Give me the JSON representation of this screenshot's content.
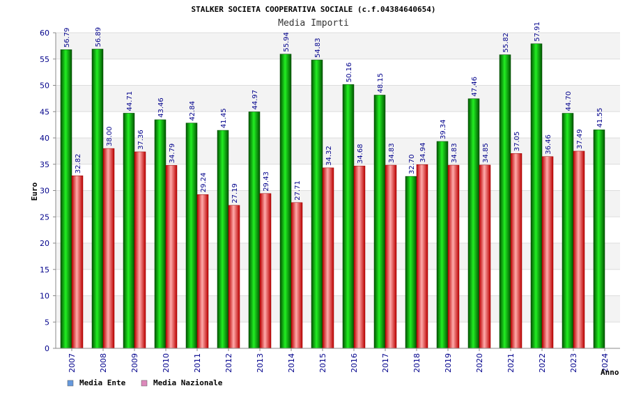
{
  "chart_data": {
    "type": "bar",
    "title": "STALKER SOCIETA COOPERATIVA SOCIALE (c.f.04384640654)",
    "subtitle": "Media Importi",
    "xlabel": "Anno",
    "ylabel": "Euro",
    "ylim": [
      0,
      60
    ],
    "yticks": [
      0,
      5,
      10,
      15,
      20,
      25,
      30,
      35,
      40,
      45,
      50,
      55,
      60
    ],
    "categories": [
      "2007",
      "2008",
      "2009",
      "2010",
      "2011",
      "2012",
      "2013",
      "2014",
      "2015",
      "2016",
      "2017",
      "2018",
      "2019",
      "2020",
      "2021",
      "2022",
      "2023",
      "2024"
    ],
    "series": [
      {
        "name": "Media Ente",
        "color": "#00aa00",
        "values": [
          56.79,
          56.89,
          44.71,
          43.46,
          42.84,
          41.45,
          44.97,
          55.94,
          54.83,
          50.16,
          48.15,
          32.7,
          39.34,
          47.46,
          55.82,
          57.91,
          44.7,
          41.55
        ],
        "labels": [
          "56.79",
          "56.89",
          "44.71",
          "43.46",
          "42.84",
          "41.45",
          "44.97",
          "55.94",
          "54.83",
          "50.16",
          "48.15",
          "32.70",
          "39.34",
          "47.46",
          "55.82",
          "57.91",
          "44.70",
          "41.55"
        ]
      },
      {
        "name": "Media Nazionale",
        "color": "#dd2222",
        "values": [
          32.82,
          38.0,
          37.36,
          34.79,
          29.24,
          27.19,
          29.43,
          27.71,
          34.32,
          34.68,
          34.83,
          34.94,
          34.83,
          34.85,
          37.05,
          36.46,
          37.49,
          null
        ],
        "labels": [
          "32.82",
          "38.00",
          "37.36",
          "34.79",
          "29.24",
          "27.19",
          "29.43",
          "27.71",
          "34.32",
          "34.68",
          "34.83",
          "34.94",
          "34.83",
          "34.85",
          "37.05",
          "36.46",
          "37.49",
          ""
        ]
      }
    ],
    "legend": {
      "position": "bottom-left",
      "items": [
        {
          "label": "Media Ente",
          "color": "#6699dd"
        },
        {
          "label": "Media Nazionale",
          "color": "#dd88bb"
        }
      ]
    },
    "grid": true
  }
}
